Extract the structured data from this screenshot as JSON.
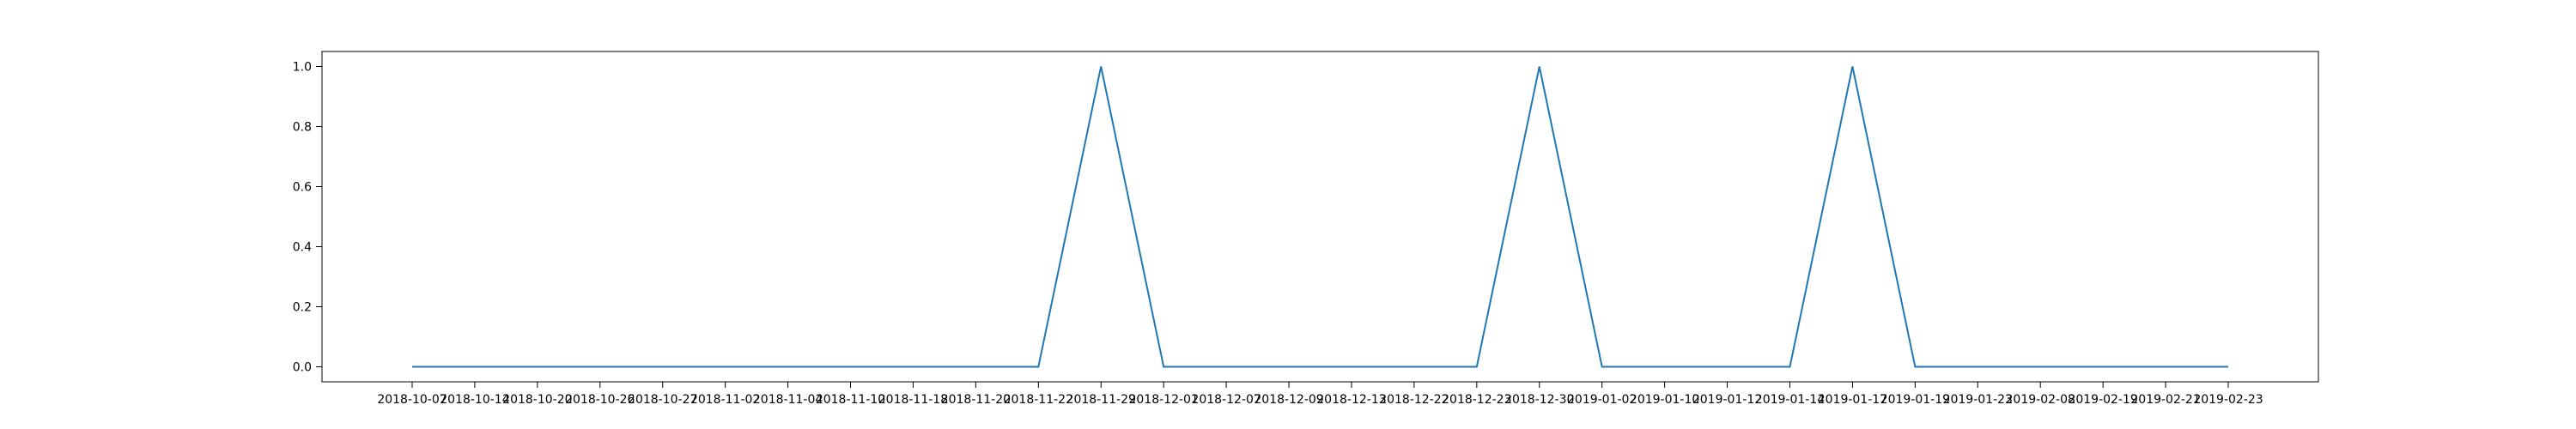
{
  "chart_data": {
    "type": "line",
    "title": "",
    "xlabel": "",
    "ylabel": "",
    "grid": false,
    "ylim": [
      -0.05,
      1.05
    ],
    "y_ticks": [
      0.0,
      0.2,
      0.4,
      0.6,
      0.8,
      1.0
    ],
    "y_tick_labels": [
      "0.0",
      "0.2",
      "0.4",
      "0.6",
      "0.8",
      "1.0"
    ],
    "x_tick_labels": [
      "2018-10-07",
      "2018-10-14",
      "2018-10-20",
      "2018-10-26",
      "2018-10-27",
      "2018-11-02",
      "2018-11-04",
      "2018-11-10",
      "2018-11-18",
      "2018-11-20",
      "2018-11-22",
      "2018-11-29",
      "2018-12-01",
      "2018-12-07",
      "2018-12-09",
      "2018-12-13",
      "2018-12-22",
      "2018-12-23",
      "2018-12-30",
      "2019-01-02",
      "2019-01-10",
      "2019-01-12",
      "2019-01-14",
      "2019-01-17",
      "2019-01-19",
      "2019-01-23",
      "2019-02-08",
      "2019-02-19",
      "2019-02-21",
      "2019-02-23"
    ],
    "series": [
      {
        "color": "#1f77b4",
        "x": [
          "2018-10-07",
          "2018-10-14",
          "2018-10-20",
          "2018-10-26",
          "2018-10-27",
          "2018-11-02",
          "2018-11-04",
          "2018-11-10",
          "2018-11-18",
          "2018-11-20",
          "2018-11-22",
          "2018-11-29",
          "2018-12-01",
          "2018-12-07",
          "2018-12-09",
          "2018-12-13",
          "2018-12-22",
          "2018-12-23",
          "2018-12-30",
          "2019-01-02",
          "2019-01-10",
          "2019-01-12",
          "2019-01-14",
          "2019-01-17",
          "2019-01-19",
          "2019-01-23",
          "2019-02-08",
          "2019-02-19",
          "2019-02-21",
          "2019-02-23"
        ],
        "values": [
          0,
          0,
          0,
          0,
          0,
          0,
          0,
          0,
          0,
          0,
          0,
          1,
          0,
          0,
          0,
          0,
          0,
          0,
          1,
          0,
          0,
          0,
          0,
          1,
          0,
          0,
          0,
          0,
          0,
          0
        ]
      }
    ]
  }
}
